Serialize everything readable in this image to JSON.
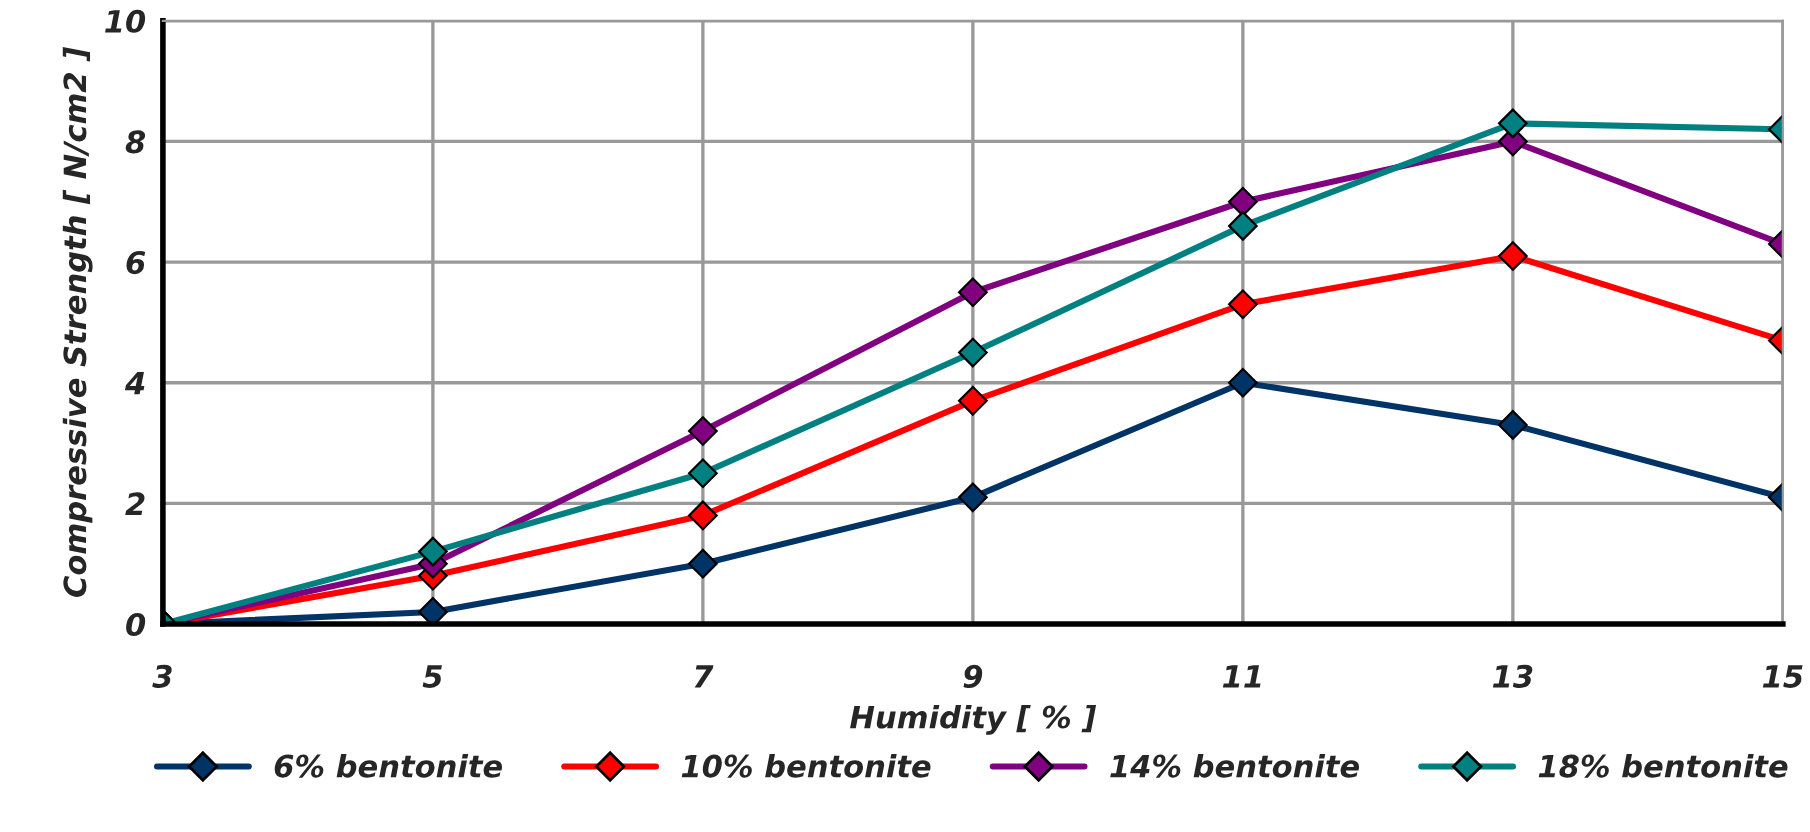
{
  "chart_data": {
    "type": "line",
    "xlabel": "Humidity [ % ]",
    "ylabel": "Compressive Strength [ N/cm2 ]",
    "x": [
      3,
      5,
      7,
      9,
      11,
      13,
      15
    ],
    "series": [
      {
        "name": "6% bentonite",
        "color": "#003366",
        "values": [
          0,
          0.2,
          1.0,
          2.1,
          4.0,
          3.3,
          2.1
        ]
      },
      {
        "name": "10% bentonite",
        "color": "#ff0000",
        "values": [
          0,
          0.8,
          1.8,
          3.7,
          5.3,
          6.1,
          4.7
        ]
      },
      {
        "name": "14% bentonite",
        "color": "#800080",
        "values": [
          0,
          1.0,
          3.2,
          5.5,
          7.0,
          8.0,
          6.3
        ]
      },
      {
        "name": "18% bentonite",
        "color": "#008080",
        "values": [
          0,
          1.2,
          2.5,
          4.5,
          6.6,
          8.3,
          8.2
        ]
      }
    ],
    "xlim": [
      3,
      15
    ],
    "xticks": [
      3,
      5,
      7,
      9,
      11,
      13,
      15
    ],
    "ylim": [
      0,
      10
    ],
    "yticks": [
      0,
      2,
      4,
      6,
      8,
      10
    ],
    "grid": true,
    "legend": "bottom",
    "marker": "diamond",
    "line_style": "solid"
  }
}
